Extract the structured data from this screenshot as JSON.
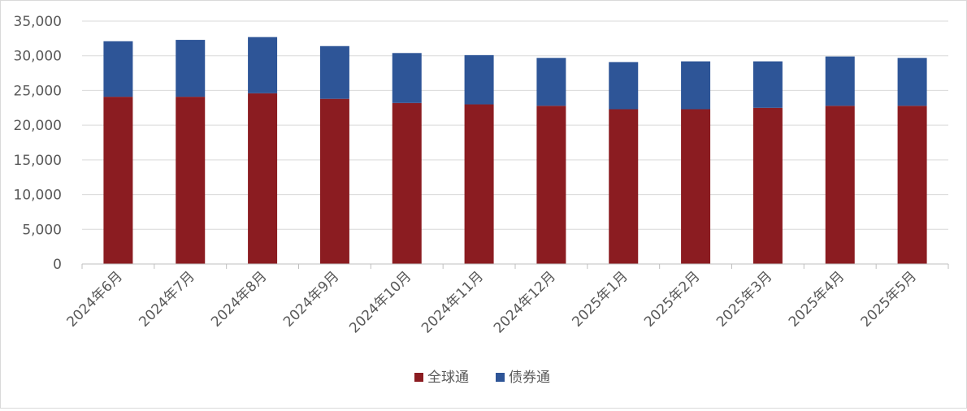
{
  "chart_data": {
    "type": "bar",
    "stacked": true,
    "categories": [
      "2024年6月",
      "2024年7月",
      "2024年8月",
      "2024年9月",
      "2024年10月",
      "2024年11月",
      "2024年12月",
      "2025年1月",
      "2025年2月",
      "2025年3月",
      "2025年4月",
      "2025年5月"
    ],
    "series": [
      {
        "name": "全球通",
        "color": "#8b1c21",
        "values": [
          24100,
          24100,
          24600,
          23800,
          23200,
          23000,
          22800,
          22300,
          22300,
          22500,
          22800,
          22800
        ]
      },
      {
        "name": "债券通",
        "color": "#2e5597",
        "values": [
          8000,
          8200,
          8100,
          7600,
          7200,
          7100,
          6900,
          6800,
          6900,
          6700,
          7100,
          6900
        ]
      }
    ],
    "yticks": [
      "0",
      "5,000",
      "10,000",
      "15,000",
      "20,000",
      "25,000",
      "30,000",
      "35,000"
    ],
    "ylim": [
      0,
      35000
    ],
    "grid": true,
    "legend": "bottom-center"
  }
}
